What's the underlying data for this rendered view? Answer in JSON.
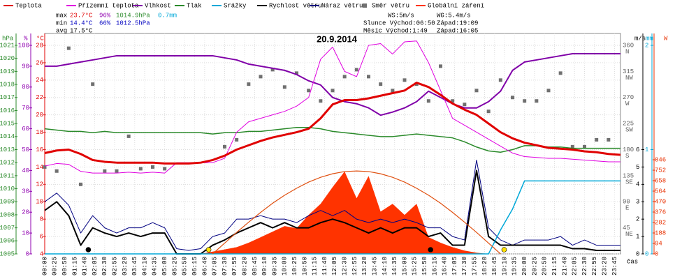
{
  "chart_data": {
    "type": "line",
    "title": "20.9.2014",
    "x_label": "čas",
    "xlim": [
      0,
      1440
    ],
    "x": [
      0,
      30,
      60,
      90,
      120,
      150,
      180,
      210,
      240,
      270,
      300,
      330,
      360,
      390,
      420,
      450,
      480,
      510,
      540,
      570,
      600,
      630,
      660,
      690,
      720,
      750,
      780,
      810,
      840,
      870,
      900,
      930,
      960,
      990,
      1020,
      1050,
      1080,
      1110,
      1140,
      1170,
      1200,
      1230,
      1260,
      1290,
      1320,
      1350,
      1380,
      1410,
      1440
    ],
    "xticks": [
      {
        "value": 0,
        "label": "00:00"
      },
      {
        "value": 25,
        "label": "00:25"
      },
      {
        "value": 50,
        "label": "00:50"
      },
      {
        "value": 75,
        "label": "01:15"
      },
      {
        "value": 100,
        "label": "01:40"
      },
      {
        "value": 125,
        "label": "02:05"
      },
      {
        "value": 150,
        "label": "02:30"
      },
      {
        "value": 175,
        "label": "02:55"
      },
      {
        "value": 200,
        "label": "03:20"
      },
      {
        "value": 225,
        "label": "03:45"
      },
      {
        "value": 250,
        "label": "04:10"
      },
      {
        "value": 275,
        "label": "04:35"
      },
      {
        "value": 300,
        "label": "05:00"
      },
      {
        "value": 325,
        "label": "05:25"
      },
      {
        "value": 350,
        "label": "05:50"
      },
      {
        "value": 375,
        "label": "06:15"
      },
      {
        "value": 400,
        "label": "06:40"
      },
      {
        "value": 425,
        "label": "07:05"
      },
      {
        "value": 450,
        "label": "07:30"
      },
      {
        "value": 475,
        "label": "07:55"
      },
      {
        "value": 500,
        "label": "08:20"
      },
      {
        "value": 525,
        "label": "08:45"
      },
      {
        "value": 550,
        "label": "09:10"
      },
      {
        "value": 575,
        "label": "09:35"
      },
      {
        "value": 600,
        "label": "10:00"
      },
      {
        "value": 625,
        "label": "10:25"
      },
      {
        "value": 650,
        "label": "10:50"
      },
      {
        "value": 675,
        "label": "11:15"
      },
      {
        "value": 700,
        "label": "11:40"
      },
      {
        "value": 725,
        "label": "12:05"
      },
      {
        "value": 750,
        "label": "12:30"
      },
      {
        "value": 775,
        "label": "12:55"
      },
      {
        "value": 800,
        "label": "13:20"
      },
      {
        "value": 825,
        "label": "13:45"
      },
      {
        "value": 850,
        "label": "14:10"
      },
      {
        "value": 875,
        "label": "14:35"
      },
      {
        "value": 900,
        "label": "15:00"
      },
      {
        "value": 925,
        "label": "15:25"
      },
      {
        "value": 950,
        "label": "15:50"
      },
      {
        "value": 975,
        "label": "16:15"
      },
      {
        "value": 1000,
        "label": "16:40"
      },
      {
        "value": 1025,
        "label": "17:05"
      },
      {
        "value": 1050,
        "label": "17:30"
      },
      {
        "value": 1075,
        "label": "17:55"
      },
      {
        "value": 1100,
        "label": "18:20"
      },
      {
        "value": 1125,
        "label": "18:45"
      },
      {
        "value": 1150,
        "label": "19:10"
      },
      {
        "value": 1175,
        "label": "19:35"
      },
      {
        "value": 1200,
        "label": "20:00"
      },
      {
        "value": 1225,
        "label": "20:25"
      },
      {
        "value": 1250,
        "label": "20:50"
      },
      {
        "value": 1275,
        "label": "21:15"
      },
      {
        "value": 1300,
        "label": "21:40"
      },
      {
        "value": 1325,
        "label": "22:05"
      },
      {
        "value": 1350,
        "label": "22:30"
      },
      {
        "value": 1375,
        "label": "22:55"
      },
      {
        "value": 1400,
        "label": "23:20"
      },
      {
        "value": 1425,
        "label": "23:45"
      }
    ],
    "grid": true,
    "axes": {
      "pressure": {
        "title": "hPa",
        "color": "#2a8a2a",
        "lim": [
          1005,
          1021
        ],
        "ticks": [
          1005,
          1006,
          1007,
          1008,
          1009,
          1010,
          1011,
          1012,
          1013,
          1014,
          1015,
          1016,
          1017,
          1018,
          1019,
          1020,
          1021
        ]
      },
      "humidity": {
        "title": "%",
        "color": "#9000b0",
        "lim": [
          0,
          100
        ],
        "ticks": [
          0,
          10,
          20,
          30,
          40,
          50,
          60,
          70,
          80,
          90,
          100
        ]
      },
      "temperature": {
        "title": "°C",
        "color": "#e00000",
        "lim": [
          4,
          28
        ],
        "ticks": [
          4,
          6,
          8,
          10,
          12,
          14,
          16,
          18,
          20,
          22,
          24,
          26,
          28
        ]
      },
      "direction": {
        "color": "#606060",
        "lim": [
          0,
          360
        ],
        "ticks": [
          {
            "value": 45,
            "label": "45",
            "compass": "NE"
          },
          {
            "value": 90,
            "label": "90",
            "compass": "E"
          },
          {
            "value": 135,
            "label": "135",
            "compass": "SE"
          },
          {
            "value": 180,
            "label": "180",
            "compass": "S"
          },
          {
            "value": 225,
            "label": "225",
            "compass": "SW"
          },
          {
            "value": 270,
            "label": "270",
            "compass": "W"
          },
          {
            "value": 315,
            "label": "315",
            "compass": "NW"
          },
          {
            "value": 360,
            "label": "360",
            "compass": "N"
          }
        ]
      },
      "wind": {
        "title": "m/s",
        "color": "#000000",
        "lim": [
          0,
          12
        ],
        "ticks": [
          0,
          1,
          2,
          3,
          4,
          5,
          6
        ]
      },
      "rain": {
        "title": "mm",
        "color": "#00a8d8",
        "lim": [
          0,
          2
        ],
        "ticks": [
          0,
          1,
          2
        ]
      },
      "radiation": {
        "title": "W",
        "color": "#e83000",
        "lim": [
          0,
          1874
        ],
        "ticks": [
          0,
          94,
          188,
          282,
          376,
          470,
          564,
          658,
          752,
          846
        ]
      }
    },
    "series": [
      {
        "name": "Teplota",
        "color": "#e00000",
        "axis": "temperature",
        "style": "line",
        "width": 3,
        "values": [
          15.6,
          15.9,
          16.0,
          15.5,
          14.8,
          14.6,
          14.5,
          14.5,
          14.5,
          14.5,
          14.4,
          14.4,
          14.4,
          14.5,
          14.8,
          15.3,
          16.0,
          16.5,
          17.0,
          17.4,
          17.7,
          18.0,
          18.4,
          19.6,
          21.2,
          21.7,
          21.7,
          21.9,
          22.2,
          22.5,
          22.8,
          23.7,
          23.2,
          22.3,
          21.3,
          20.6,
          20.0,
          19.0,
          18.0,
          17.3,
          16.8,
          16.5,
          16.2,
          16.1,
          16.0,
          15.8,
          15.7,
          15.5,
          15.4
        ]
      },
      {
        "name": "Přízemní teplota",
        "color": "#e000e0",
        "axis": "temperature",
        "style": "line",
        "width": 1,
        "values": [
          14.1,
          14.4,
          14.3,
          13.5,
          13.3,
          13.3,
          13.3,
          13.4,
          13.3,
          13.4,
          13.3,
          14.5,
          14.5,
          14.5,
          14.5,
          15.0,
          18.0,
          19.2,
          19.6,
          20.0,
          20.4,
          21.0,
          22.0,
          26.4,
          27.8,
          25.0,
          24.4,
          28.0,
          28.2,
          27.0,
          28.4,
          28.5,
          26.0,
          22.8,
          19.6,
          18.8,
          18.0,
          17.2,
          16.4,
          15.6,
          15.2,
          15.1,
          15.0,
          15.0,
          14.9,
          14.8,
          14.7,
          14.6,
          14.6
        ]
      },
      {
        "name": "Vlhkost",
        "color": "#8000a8",
        "axis": "humidity",
        "style": "line",
        "width": 2,
        "values": [
          90,
          90,
          91,
          92,
          93,
          94,
          95,
          95,
          95,
          95,
          95,
          95,
          95,
          95,
          95,
          94,
          93,
          91,
          90,
          89,
          88,
          86,
          83,
          81,
          75,
          73,
          72,
          70,
          66.5,
          68,
          70,
          73,
          78,
          75,
          72,
          70,
          70,
          73,
          78,
          88,
          92,
          93,
          94,
          95,
          96,
          96,
          96,
          96,
          96
        ]
      },
      {
        "name": "Tlak",
        "color": "#2a8a2a",
        "axis": "pressure",
        "style": "line",
        "width": 1.5,
        "values": [
          1014.6,
          1014.5,
          1014.4,
          1014.4,
          1014.3,
          1014.4,
          1014.3,
          1014.3,
          1014.3,
          1014.3,
          1014.3,
          1014.3,
          1014.3,
          1014.3,
          1014.2,
          1014.3,
          1014.3,
          1014.4,
          1014.4,
          1014.5,
          1014.6,
          1014.7,
          1014.7,
          1014.6,
          1014.4,
          1014.3,
          1014.2,
          1014.1,
          1014.0,
          1014.0,
          1014.1,
          1014.2,
          1014.1,
          1014.0,
          1013.9,
          1013.6,
          1013.2,
          1012.9,
          1012.8,
          1013.0,
          1013.3,
          1013.3,
          1013.2,
          1013.2,
          1013.1,
          1013.1,
          1013.1,
          1013.1,
          1013.1
        ]
      },
      {
        "name": "Srážky",
        "color": "#00a8d8",
        "axis": "rain",
        "style": "line",
        "width": 1.5,
        "values": [
          0,
          0,
          0,
          0,
          0,
          0,
          0,
          0,
          0,
          0,
          0,
          0,
          0,
          0,
          0,
          0,
          0,
          0,
          0,
          0,
          0,
          0,
          0,
          0,
          0,
          0,
          0,
          0,
          0,
          0,
          0,
          0,
          0,
          0,
          0,
          0,
          0,
          0,
          0.23,
          0.43,
          0.7,
          0.7,
          0.7,
          0.7,
          0.7,
          0.7,
          0.7,
          0.7,
          0.7
        ]
      },
      {
        "name": "Rychlost větru",
        "color": "#000000",
        "axis": "wind",
        "style": "line",
        "width": 2,
        "values": [
          2.5,
          3.0,
          2.2,
          0.5,
          1.5,
          1.2,
          1.0,
          1.2,
          1.0,
          1.2,
          1.2,
          0,
          0,
          0,
          0.5,
          0.8,
          1.2,
          1.5,
          1.8,
          1.5,
          1.8,
          1.5,
          1.5,
          1.8,
          2.0,
          1.8,
          1.5,
          1.2,
          1.5,
          1.2,
          1.5,
          1.5,
          1.0,
          1.2,
          0.5,
          0.5,
          4.8,
          1.0,
          0.5,
          0.5,
          0.5,
          0.5,
          0.5,
          0.5,
          0.3,
          0.3,
          0.2,
          0.2,
          0.2
        ]
      },
      {
        "name": "Náraz větru",
        "color": "#000080",
        "axis": "wind",
        "style": "line",
        "width": 1,
        "values": [
          3.0,
          3.5,
          2.8,
          1.2,
          2.2,
          1.5,
          1.2,
          1.5,
          1.5,
          1.8,
          1.5,
          0.3,
          0.2,
          0.3,
          1.0,
          1.2,
          2.0,
          2.0,
          2.2,
          2.0,
          2.0,
          1.8,
          2.2,
          2.5,
          2.2,
          2.5,
          2.0,
          1.8,
          2.0,
          1.8,
          2.0,
          1.8,
          1.5,
          1.5,
          1.0,
          0.8,
          5.4,
          1.5,
          0.8,
          0.5,
          0.8,
          0.8,
          0.8,
          1.0,
          0.5,
          0.8,
          0.5,
          0.5,
          0.5
        ]
      },
      {
        "name": "Směr větru",
        "color": "#707070",
        "axis": "direction",
        "style": "scatter",
        "values": [
          150,
          143,
          355,
          120,
          293,
          143,
          143,
          203,
          147,
          150,
          147,
          null,
          null,
          null,
          null,
          185,
          197,
          293,
          306,
          318,
          288,
          312,
          282,
          264,
          282,
          306,
          318,
          306,
          293,
          282,
          300,
          293,
          264,
          324,
          264,
          258,
          282,
          246,
          300,
          270,
          264,
          264,
          282,
          312,
          185,
          185,
          197,
          197,
          null
        ]
      },
      {
        "name": "Globální záření",
        "color": "#ff3300",
        "axis": "radiation",
        "style": "area",
        "values": [
          0,
          0,
          0,
          0,
          0,
          0,
          0,
          0,
          0,
          0,
          0,
          0,
          0,
          0,
          20,
          40,
          60,
          100,
          150,
          200,
          250,
          230,
          350,
          450,
          600,
          740,
          500,
          700,
          380,
          450,
          350,
          450,
          150,
          100,
          60,
          30,
          10,
          0,
          0,
          0,
          0,
          0,
          0,
          0,
          0,
          0,
          0,
          0,
          0
        ]
      }
    ],
    "clear_sky_radiation": {
      "color": "#e05010",
      "axis": "radiation",
      "values": [
        null,
        null,
        null,
        null,
        null,
        null,
        null,
        null,
        null,
        null,
        null,
        null,
        null,
        null,
        0,
        97,
        193,
        285,
        373,
        455,
        527,
        590,
        645,
        688,
        720,
        740,
        745,
        740,
        720,
        688,
        645,
        590,
        527,
        455,
        373,
        285,
        193,
        97,
        0,
        null,
        null,
        null,
        null,
        null,
        null,
        null,
        null,
        null,
        null
      ]
    },
    "sun_moon_markers": [
      {
        "x": 109,
        "color": "#000000"
      },
      {
        "x": 410,
        "color": "#ffe000"
      },
      {
        "x": 965,
        "color": "#000000"
      },
      {
        "x": 1149,
        "color": "#ffe000"
      }
    ],
    "stats": {
      "max": {
        "label": "max",
        "temperature": "23.7°C",
        "humidity": "96%",
        "pressure": "1014.9hPa",
        "rain": "0.7mm"
      },
      "min": {
        "label": "min",
        "temperature": "14.4°C",
        "humidity": "66%",
        "pressure": "1012.5hPa"
      },
      "avg": {
        "label": "avg",
        "temperature": "17.5°C"
      }
    },
    "info": {
      "ws": "WS:5m/s",
      "wg": "WG:5.4m/s",
      "sunrise": "Slunce Východ:06:50",
      "sunset": "Západ:19:09",
      "moonrise": "Měsíc Východ:1:49",
      "moonset": "Západ:16:05"
    }
  }
}
